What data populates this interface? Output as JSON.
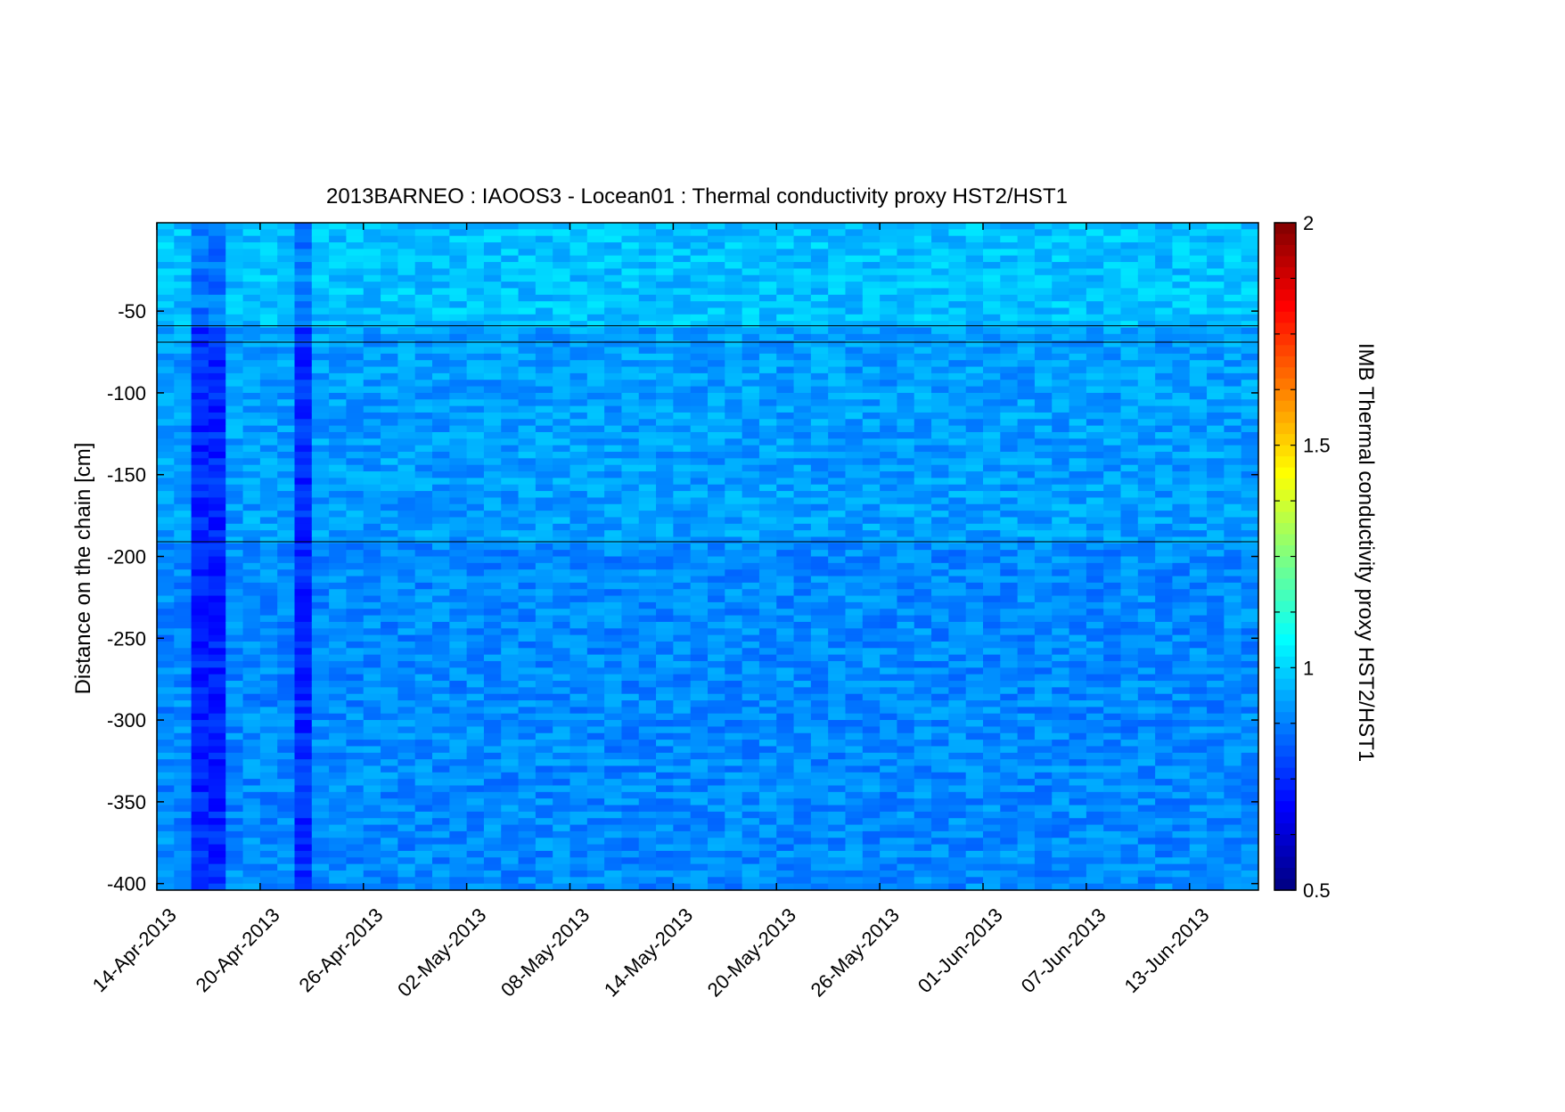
{
  "chart_data": {
    "type": "heatmap",
    "title": "2013BARNEO : IAOOS3 - Locean01 : Thermal conductivity proxy HST2/HST1",
    "ylabel": "Distance on the chain [cm]",
    "colorbar_label": "IMB Thermal conductivity proxy HST2/HST1",
    "colormap": "jet",
    "x_range": [
      "2013-04-14",
      "2013-06-17"
    ],
    "y_range": [
      -404,
      4
    ],
    "color_range": [
      0.5,
      2
    ],
    "x_ticks": [
      {
        "date": "2013-04-14",
        "label": "14-Apr-2013"
      },
      {
        "date": "2013-04-20",
        "label": "20-Apr-2013"
      },
      {
        "date": "2013-04-26",
        "label": "26-Apr-2013"
      },
      {
        "date": "2013-05-02",
        "label": "02-May-2013"
      },
      {
        "date": "2013-05-08",
        "label": "08-May-2013"
      },
      {
        "date": "2013-05-14",
        "label": "14-May-2013"
      },
      {
        "date": "2013-05-20",
        "label": "20-May-2013"
      },
      {
        "date": "2013-05-26",
        "label": "26-May-2013"
      },
      {
        "date": "2013-06-01",
        "label": "01-Jun-2013"
      },
      {
        "date": "2013-06-07",
        "label": "07-Jun-2013"
      },
      {
        "date": "2013-06-13",
        "label": "13-Jun-2013"
      }
    ],
    "y_ticks": [
      {
        "value": -50,
        "label": "-50"
      },
      {
        "value": -100,
        "label": "-100"
      },
      {
        "value": -150,
        "label": "-150"
      },
      {
        "value": -200,
        "label": "-200"
      },
      {
        "value": -250,
        "label": "-250"
      },
      {
        "value": -300,
        "label": "-300"
      },
      {
        "value": -350,
        "label": "-350"
      },
      {
        "value": -400,
        "label": "-400"
      }
    ],
    "color_ticks": [
      {
        "value": 2,
        "label": "2"
      },
      {
        "value": 1.5,
        "label": "1.5"
      },
      {
        "value": 1,
        "label": "1"
      },
      {
        "value": 0.5,
        "label": "0.5"
      }
    ],
    "horizontal_lines_cm": [
      -59,
      -69,
      -191
    ],
    "field": {
      "cell_height_cm": 4,
      "typical_value_air": 0.97,
      "typical_value_ice": 0.92,
      "typical_value_ocean": 0.89,
      "low_value_columns": [
        {
          "date": "2013-04-16",
          "value": 0.74
        },
        {
          "date": "2013-04-17",
          "value": 0.74
        },
        {
          "date": "2013-04-22",
          "value": 0.75
        }
      ]
    },
    "grid": false,
    "colorbar_position": "right"
  }
}
